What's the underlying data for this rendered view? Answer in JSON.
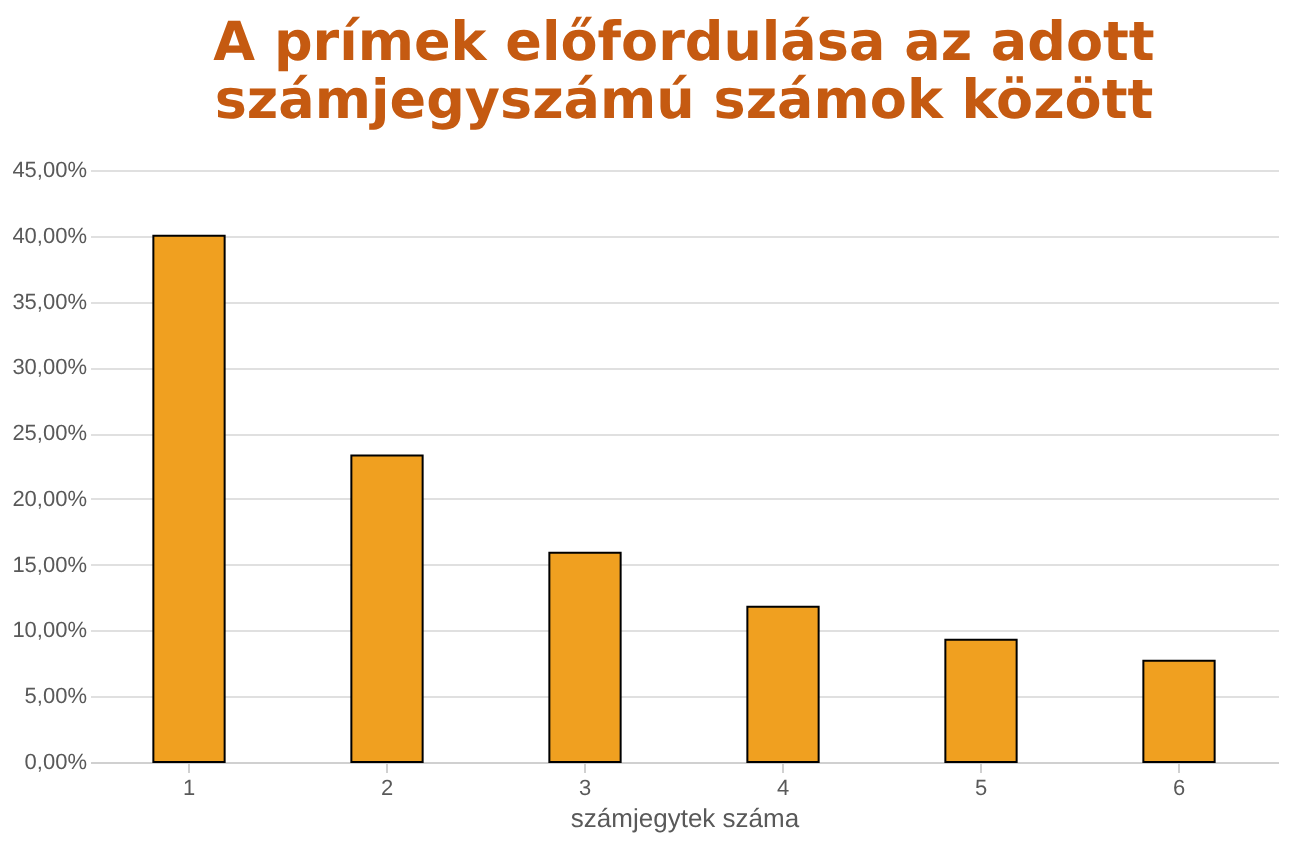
{
  "chart_data": {
    "type": "bar",
    "title": "A prímek előfordulása az adott\nszámjegyszámú számok  között",
    "xlabel": "számjegytek száma",
    "categories": [
      "1",
      "2",
      "3",
      "4",
      "5",
      "6"
    ],
    "values": [
      40,
      23.3,
      15.9,
      11.8,
      9.3,
      7.7
    ],
    "color": "#f0a020",
    "ylim": [
      0,
      45
    ],
    "yticks": [
      {
        "value": 0,
        "label": "0,00%"
      },
      {
        "value": 5,
        "label": "5,00%"
      },
      {
        "value": 10,
        "label": "10,00%"
      },
      {
        "value": 15,
        "label": "15,00%"
      },
      {
        "value": 20,
        "label": "20,00%"
      },
      {
        "value": 25,
        "label": "25,00%"
      },
      {
        "value": 30,
        "label": "30,00%"
      },
      {
        "value": 35,
        "label": "35,00%"
      },
      {
        "value": 40,
        "label": "40,00%"
      },
      {
        "value": 45,
        "label": "45,00%"
      }
    ],
    "grid": "y"
  }
}
